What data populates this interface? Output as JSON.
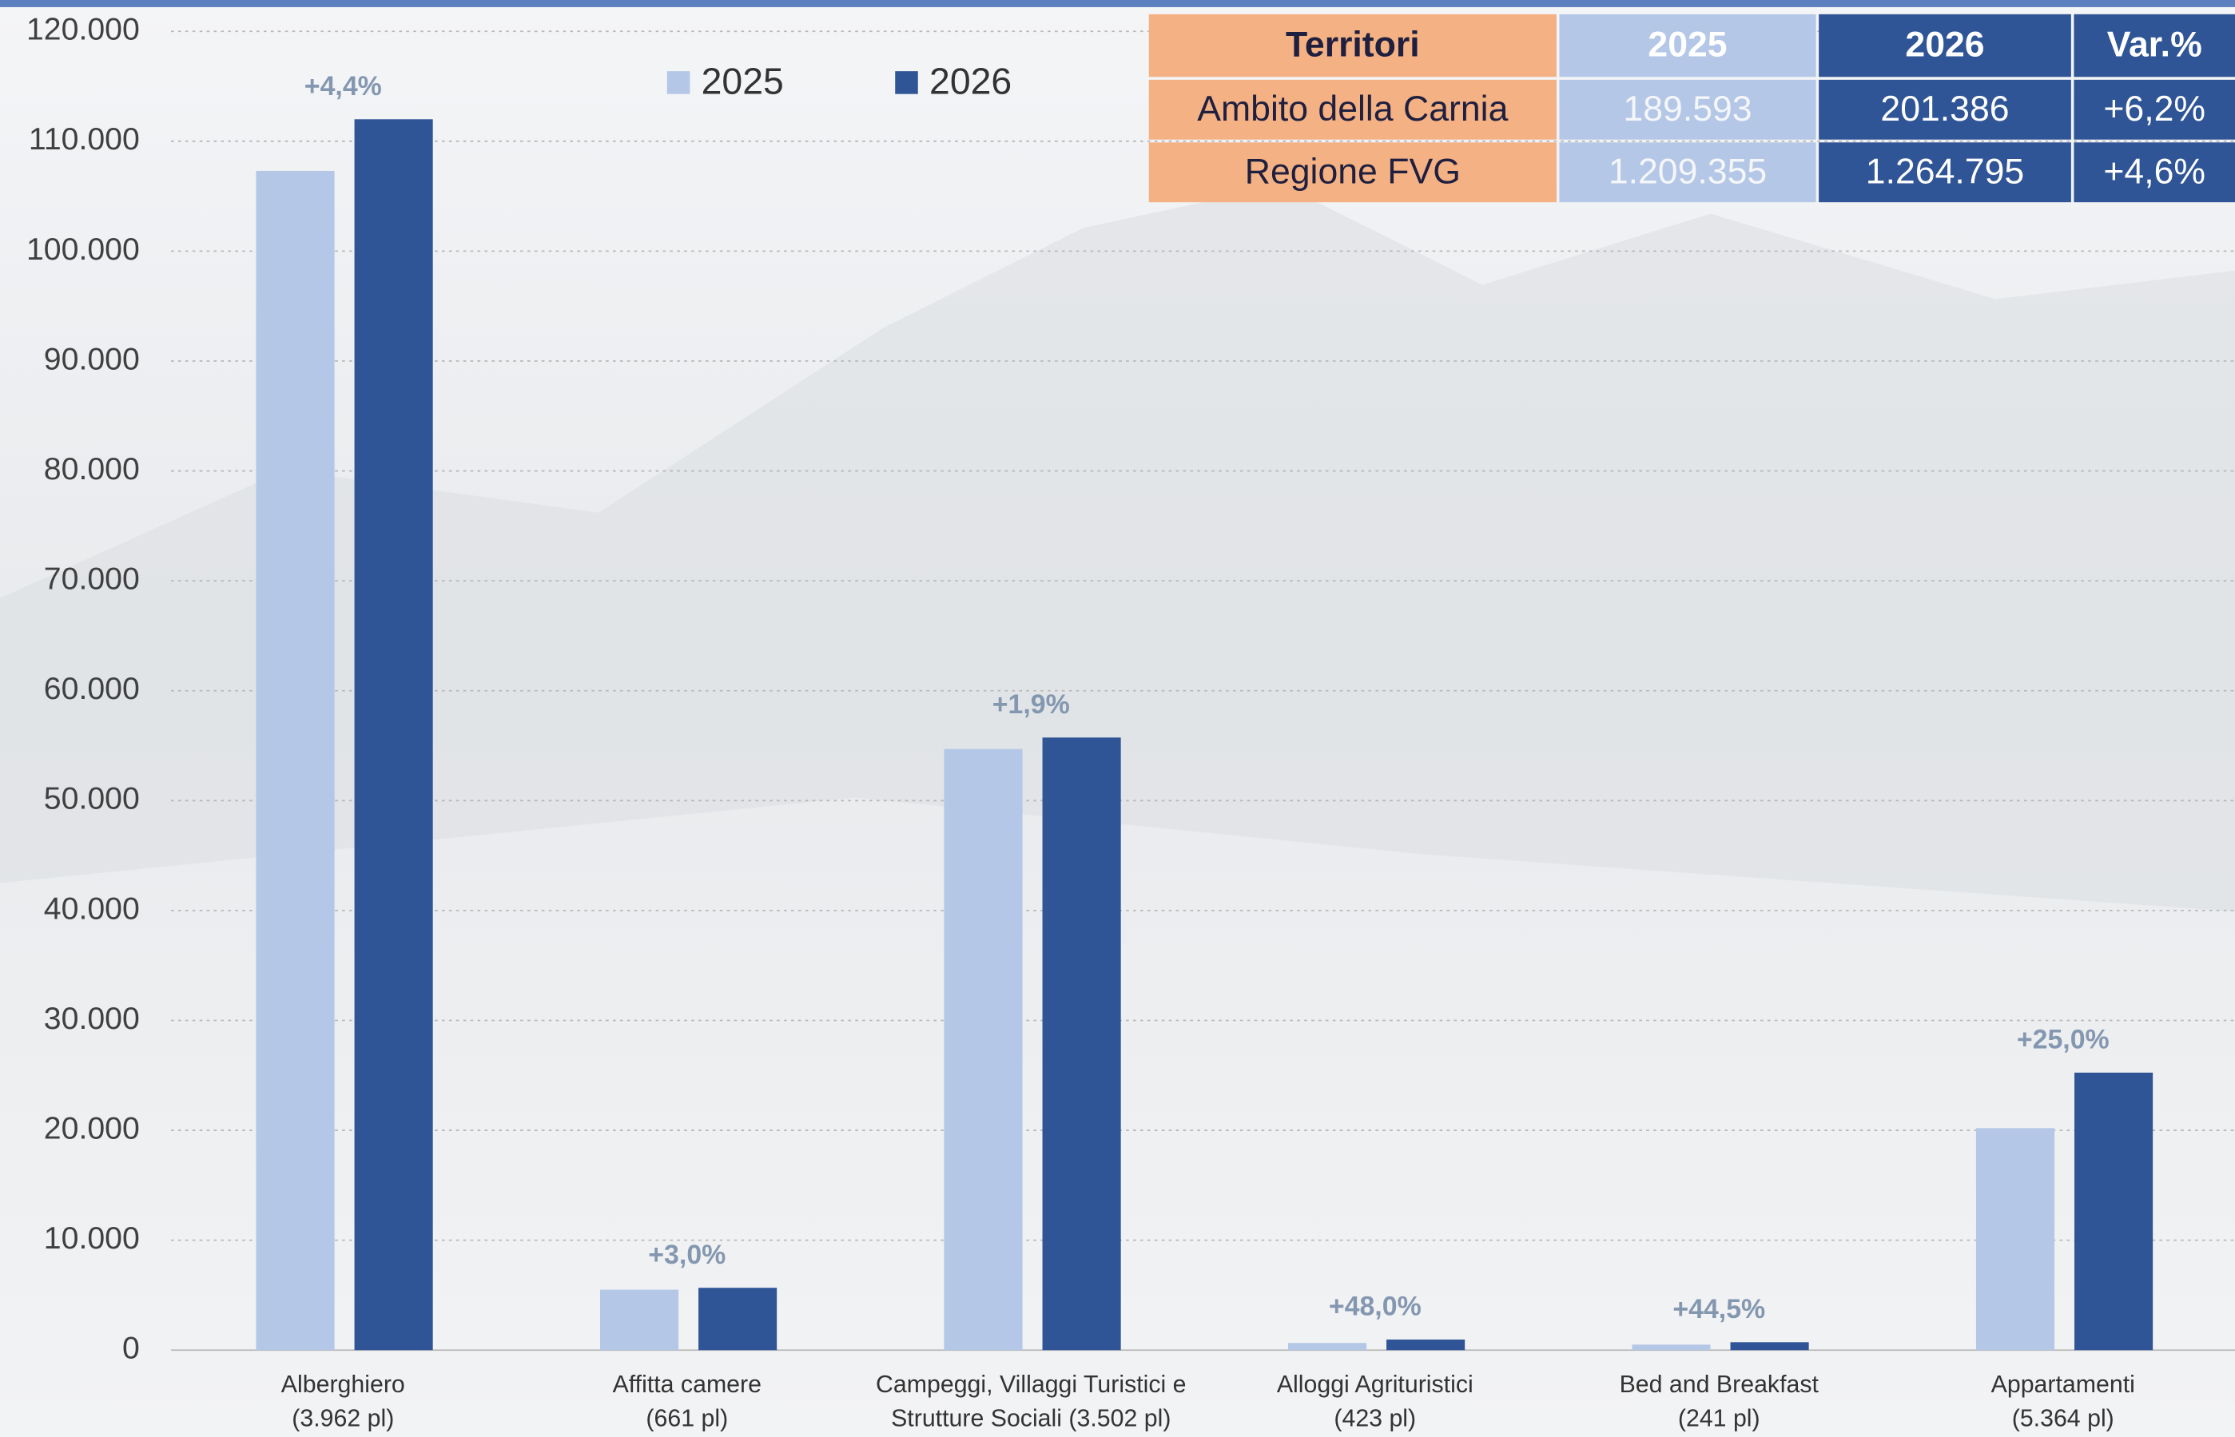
{
  "chart_data": {
    "type": "bar",
    "categories": [
      [
        "Alberghiero",
        "(3.962 pl)"
      ],
      [
        "Affitta camere",
        "(661 pl)"
      ],
      [
        "Campeggi, Villaggi Turistici e",
        "Strutture Sociali (3.502 pl)"
      ],
      [
        "Alloggi Agrituristici",
        "(423 pl)"
      ],
      [
        "Bed and Breakfast",
        "(241 pl)"
      ],
      [
        "Appartamenti",
        "(5.364 pl)"
      ]
    ],
    "series": [
      {
        "name": "2025",
        "color": "#b4c7e7",
        "values": [
          107300,
          5500,
          54700,
          650,
          500,
          20200
        ]
      },
      {
        "name": "2026",
        "color": "#2f5597",
        "values": [
          112000,
          5670,
          55740,
          962,
          722,
          25250
        ]
      }
    ],
    "variation_labels": [
      "+4,4%",
      "+3,0%",
      "+1,9%",
      "+48,0%",
      "+44,5%",
      "+25,0%"
    ],
    "ylim": [
      0,
      120000
    ],
    "yticks": [
      0,
      {
        "value": 10000,
        "label": "10.000"
      },
      {
        "value": 20000,
        "label": "20.000"
      },
      {
        "value": 30000,
        "label": "30.000"
      },
      {
        "value": 40000,
        "label": "40.000"
      },
      {
        "value": 50000,
        "label": "50.000"
      },
      {
        "value": 60000,
        "label": "60.000"
      },
      {
        "value": 70000,
        "label": "70.000"
      },
      {
        "value": 80000,
        "label": "80.000"
      },
      {
        "value": 90000,
        "label": "90.000"
      },
      {
        "value": 100000,
        "label": "100.000"
      },
      {
        "value": 110000,
        "label": "110.000"
      },
      {
        "value": 120000,
        "label": "120.000"
      }
    ],
    "grid": true,
    "legend": "top"
  },
  "table": {
    "header": [
      "Territori",
      "2025",
      "2026",
      "Var.%"
    ],
    "rows": [
      [
        "Ambito della Carnia",
        "189.593",
        "201.386",
        "+6,2%"
      ],
      [
        "Regione FVG",
        "1.209.355",
        "1.264.795",
        "+4,6%"
      ]
    ]
  }
}
